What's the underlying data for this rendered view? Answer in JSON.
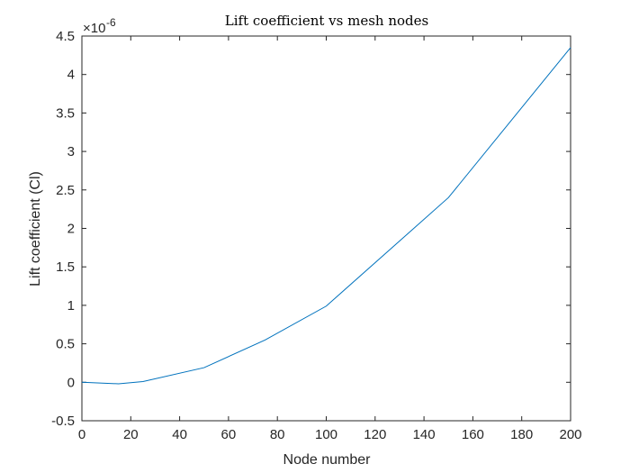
{
  "chart_data": {
    "type": "line",
    "title": "Lift coefficient vs mesh nodes",
    "xlabel": "Node number",
    "ylabel": "Lift coefficient (Cl)",
    "y_exponent_label": "×10",
    "y_exponent_power": "-6",
    "xlim": [
      0,
      200
    ],
    "ylim": [
      -0.5,
      4.5
    ],
    "x_ticks": [
      0,
      20,
      40,
      60,
      80,
      100,
      120,
      140,
      160,
      180,
      200
    ],
    "y_ticks": [
      -0.5,
      0,
      0.5,
      1,
      1.5,
      2,
      2.5,
      3,
      3.5,
      4,
      4.5
    ],
    "y_tick_labels": [
      "-0.5",
      "0",
      "0.5",
      "1",
      "1.5",
      "2",
      "2.5",
      "3",
      "3.5",
      "4",
      "4.5"
    ],
    "grid": false,
    "series": [
      {
        "color": "#0072BD",
        "x": [
          0,
          15,
          25,
          50,
          75,
          100,
          150,
          200
        ],
        "y": [
          0.0,
          -0.02,
          0.01,
          0.19,
          0.55,
          0.99,
          2.4,
          4.35
        ]
      }
    ]
  }
}
